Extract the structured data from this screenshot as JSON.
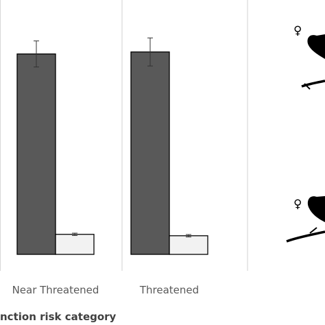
{
  "chart_data": {
    "type": "bar",
    "xlabel": "nction risk category",
    "categories": [
      "Near Threatened",
      "Threatened"
    ],
    "series": [
      {
        "color": "#595959",
        "values": [
          100,
          101
        ],
        "errors": [
          6.5,
          7
        ]
      },
      {
        "color": "#f2f2f2",
        "values": [
          10,
          9.3
        ],
        "errors": [
          0.6,
          0.6
        ]
      }
    ],
    "ylim": [
      0,
      117
    ],
    "grid": false,
    "legend": {
      "symbols": [
        "♀",
        "♀"
      ]
    }
  }
}
